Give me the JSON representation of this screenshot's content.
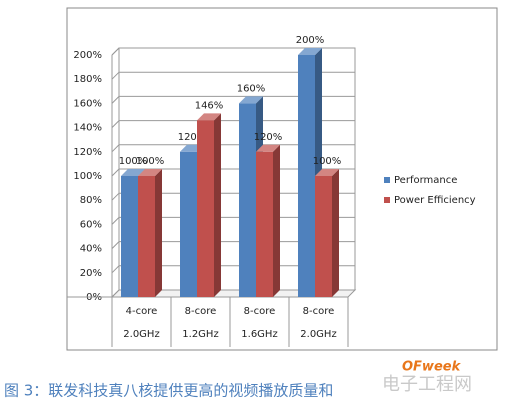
{
  "chart_data": {
    "type": "bar3d",
    "categories": [
      [
        "4-core",
        "2.0GHz"
      ],
      [
        "8-core",
        "1.2GHz"
      ],
      [
        "8-core",
        "1.6GHz"
      ],
      [
        "8-core",
        "2.0GHz"
      ]
    ],
    "series": [
      {
        "name": "Performance",
        "color": "#4f81bd",
        "values": [
          100,
          120,
          160,
          200
        ],
        "value_labels": [
          "100%",
          "120%",
          "160%",
          "200%"
        ]
      },
      {
        "name": "Power Efficiency",
        "color": "#c0504d",
        "values": [
          100,
          146,
          120,
          100
        ],
        "value_labels": [
          "100%",
          "146%",
          "120%",
          "100%"
        ]
      }
    ],
    "ylim": [
      0,
      200
    ],
    "yticks": [
      {
        "value": 0,
        "label": "0%"
      },
      {
        "value": 20,
        "label": "20%"
      },
      {
        "value": 40,
        "label": "40%"
      },
      {
        "value": 60,
        "label": "60%"
      },
      {
        "value": 80,
        "label": "80%"
      },
      {
        "value": 100,
        "label": "100%"
      },
      {
        "value": 120,
        "label": "120%"
      },
      {
        "value": 140,
        "label": "140%"
      },
      {
        "value": 160,
        "label": "160%"
      },
      {
        "value": 180,
        "label": "180%"
      },
      {
        "value": 200,
        "label": "200%"
      }
    ],
    "grid": true,
    "legend": "right",
    "caption": "图 3：联发科技真八核提供更高的视频播放质量和",
    "watermark": [
      "OFweek",
      "电子工程网"
    ]
  }
}
